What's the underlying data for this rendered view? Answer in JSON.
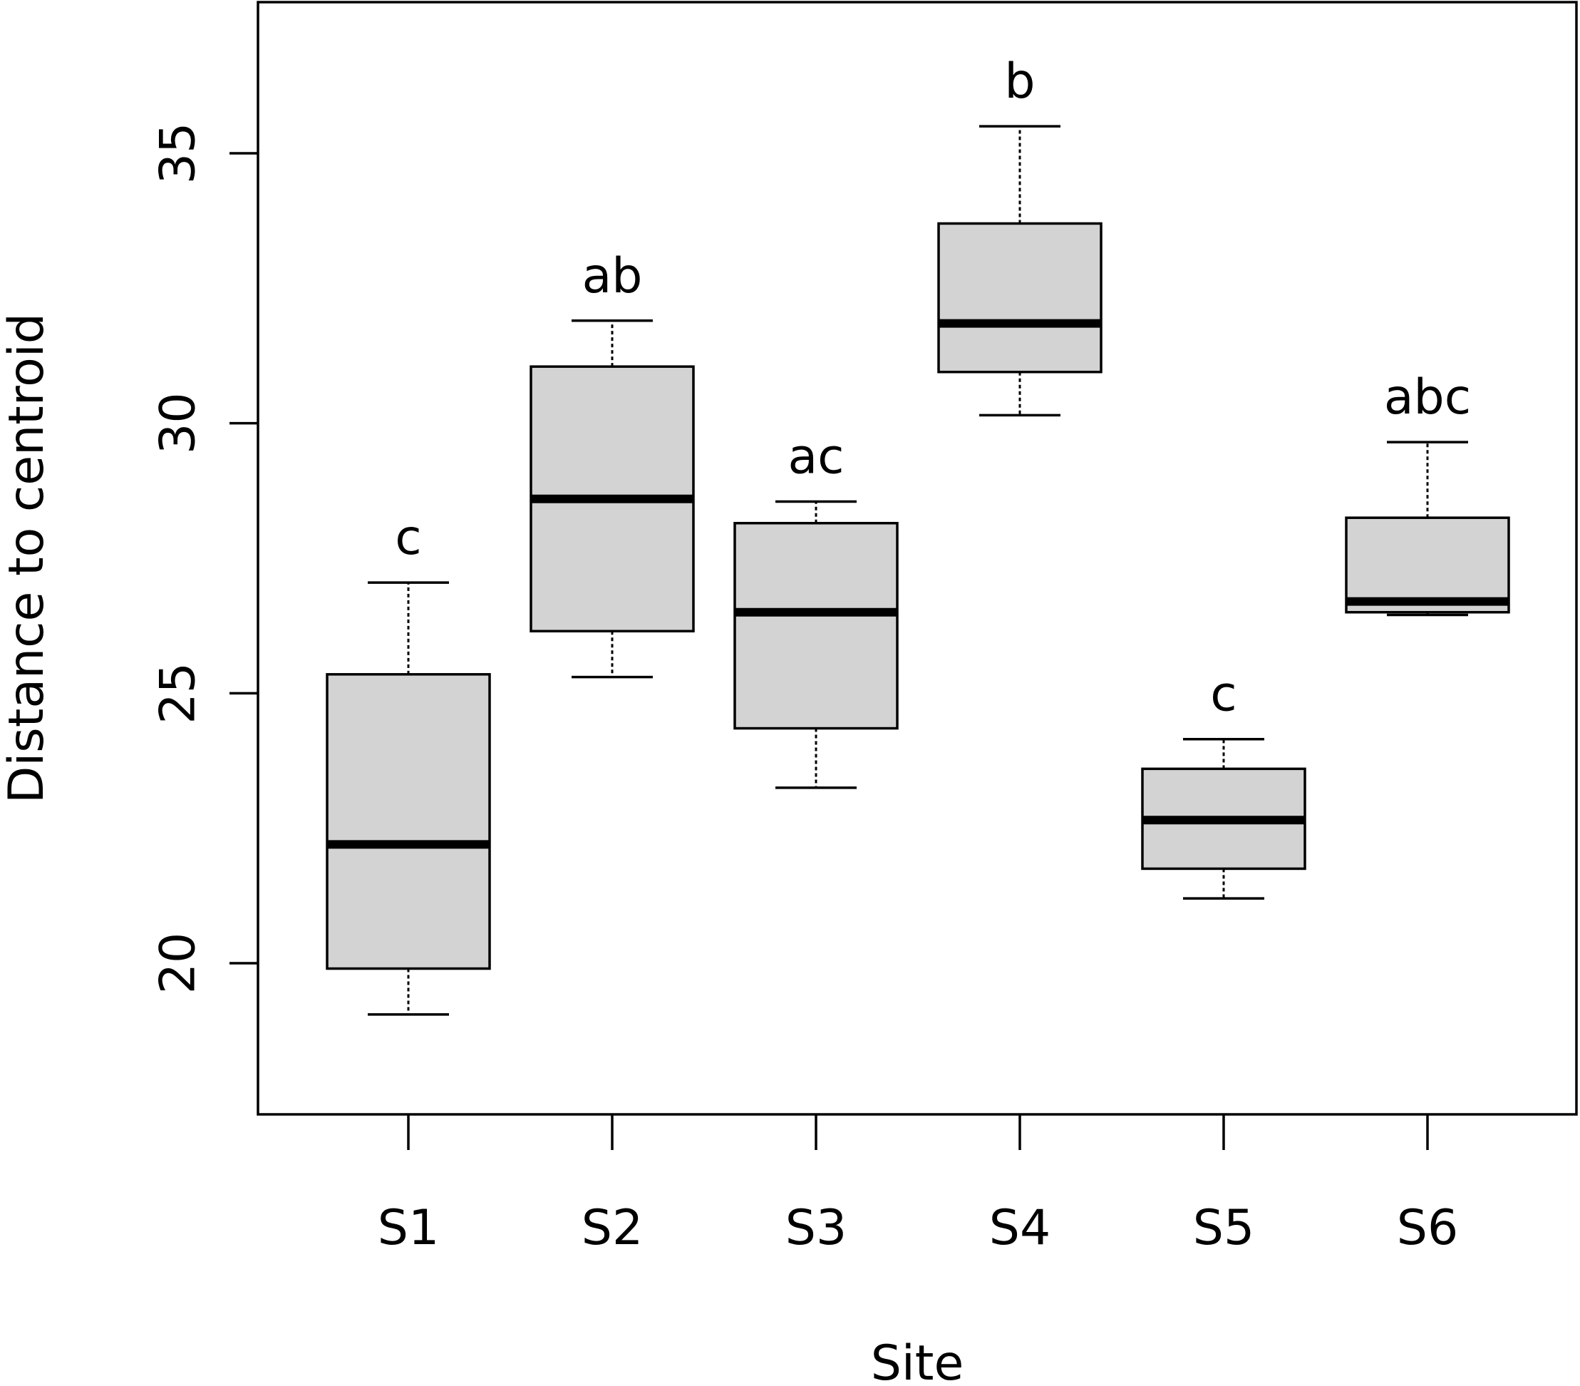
{
  "chart_data": {
    "type": "box",
    "xlabel": "Site",
    "ylabel": "Distance to centroid",
    "ylim": [
      17.2,
      37.8
    ],
    "yticks": [
      20,
      25,
      30,
      35
    ],
    "grid": false,
    "categories": [
      "S1",
      "S2",
      "S3",
      "S4",
      "S5",
      "S6"
    ],
    "boxes": [
      {
        "site": "S1",
        "whisker_low": 19.05,
        "q1": 19.9,
        "median": 22.2,
        "q3": 25.35,
        "whisker_high": 27.05,
        "letter": "c"
      },
      {
        "site": "S2",
        "whisker_low": 25.3,
        "q1": 26.15,
        "median": 28.6,
        "q3": 31.05,
        "whisker_high": 31.9,
        "letter": "ab"
      },
      {
        "site": "S3",
        "whisker_low": 23.25,
        "q1": 24.35,
        "median": 26.5,
        "q3": 28.15,
        "whisker_high": 28.55,
        "letter": "ac"
      },
      {
        "site": "S4",
        "whisker_low": 30.15,
        "q1": 30.95,
        "median": 31.85,
        "q3": 33.7,
        "whisker_high": 35.5,
        "letter": "b"
      },
      {
        "site": "S5",
        "whisker_low": 21.2,
        "q1": 21.75,
        "median": 22.65,
        "q3": 23.6,
        "whisker_high": 24.15,
        "letter": "c"
      },
      {
        "site": "S6",
        "whisker_low": 26.45,
        "q1": 26.5,
        "median": 26.7,
        "q3": 28.25,
        "whisker_high": 29.65,
        "letter": "abc"
      }
    ],
    "box_fill": "#d3d3d3",
    "line_color": "#000000"
  }
}
